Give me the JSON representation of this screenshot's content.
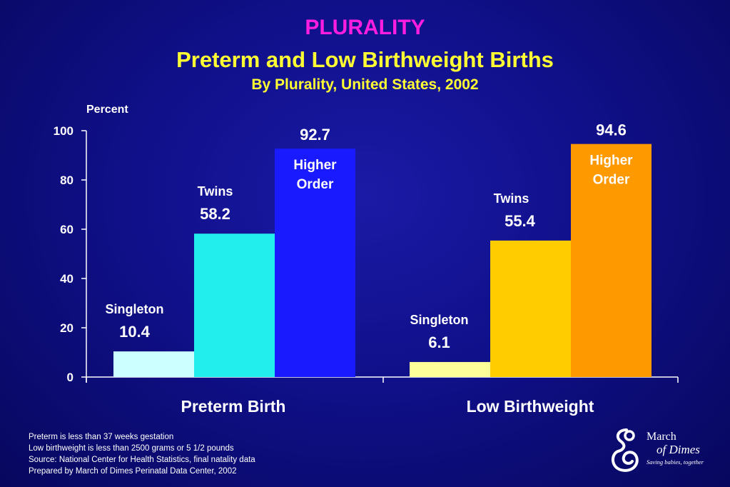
{
  "title": "PLURALITY",
  "subtitle": "Preterm and Low Birthweight Births",
  "subtitle2": "By Plurality, United States, 2002",
  "colors": {
    "title": "#ff1ee0",
    "subtitle": "#ffff33",
    "preterm": [
      "#ccffff",
      "#22eeee",
      "#1a1aff"
    ],
    "lbw": [
      "#ffff99",
      "#ffcc00",
      "#ff9900"
    ]
  },
  "chart_data": {
    "type": "bar",
    "ylabel": "Percent",
    "ylim": [
      0,
      100
    ],
    "yticks": [
      0,
      20,
      40,
      60,
      80,
      100
    ],
    "categories": [
      "Preterm Birth",
      "Low Birthweight"
    ],
    "groups": [
      {
        "category": "Preterm Birth",
        "bars": [
          {
            "name": "Singleton",
            "value": 10.4,
            "value_label": "10.4"
          },
          {
            "name": "Twins",
            "value": 58.2,
            "value_label": "58.2"
          },
          {
            "name": "Higher Order",
            "value": 92.7,
            "value_label": "92.7"
          }
        ]
      },
      {
        "category": "Low Birthweight",
        "bars": [
          {
            "name": "Singleton",
            "value": 6.1,
            "value_label": "6.1"
          },
          {
            "name": "Twins",
            "value": 55.4,
            "value_label": "55.4"
          },
          {
            "name": "Higher Order",
            "value": 94.6,
            "value_label": "94.6"
          }
        ]
      }
    ],
    "grid": false,
    "legend": "none"
  },
  "notes": [
    "Preterm is less than 37 weeks gestation",
    "Low birthweight is less than 2500 grams or 5 1/2 pounds",
    "Source: National Center for Health Statistics, final natality data",
    "Prepared by March of Dimes Perinatal Data Center, 2002"
  ],
  "logo": {
    "line1": "March",
    "line2": "of Dimes",
    "tagline": "Saving babies, together"
  }
}
